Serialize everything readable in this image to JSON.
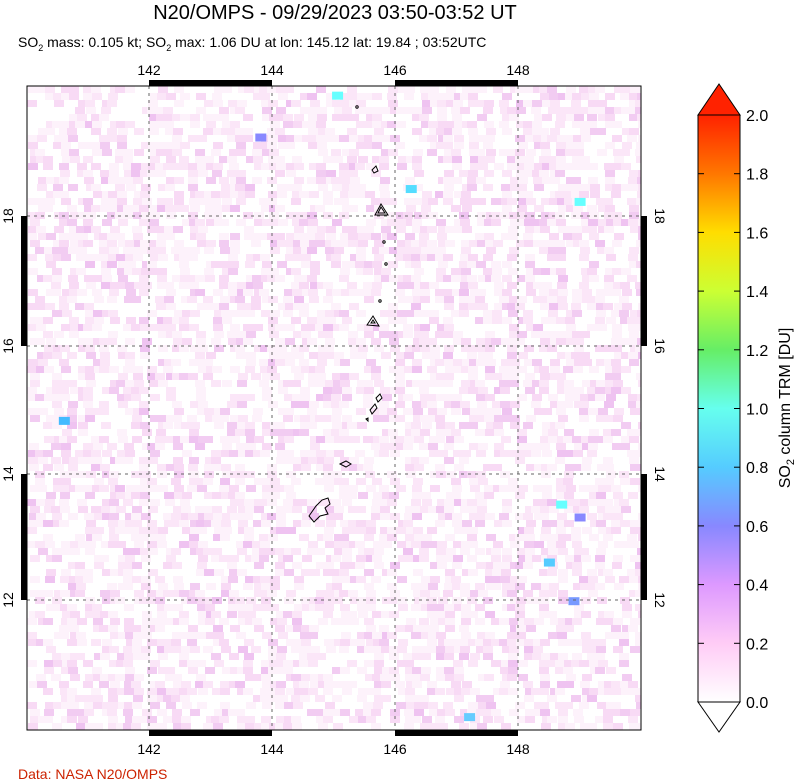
{
  "header": {
    "title": "N20/OMPS - 09/29/2023 03:50-03:52 UT",
    "subtitle_parts": {
      "a": "SO",
      "a_sub": "2",
      "b": " mass: 0.105 kt; SO",
      "b_sub": "2",
      "c": " max: 1.06 DU at lon: 145.12 lat: 19.84 ; 03:52UTC"
    }
  },
  "footer": {
    "source": "Data: NASA N20/OMPS"
  },
  "map": {
    "lon_ticks": [
      "142",
      "144",
      "146",
      "148"
    ],
    "lat_ticks": [
      "18",
      "16",
      "14",
      "12"
    ],
    "lon_range": [
      140.0,
      150.0
    ],
    "lat_range": [
      10.0,
      20.0
    ],
    "grid": "dashed",
    "background_pixel_colors": [
      "#ffffff",
      "#fdf2fb",
      "#fbe6f8",
      "#f8daf5",
      "#f2ccf2",
      "#efc3f1"
    ],
    "highlight_pixels": [
      {
        "lon": 145.05,
        "lat": 19.85,
        "color": "#66ffff"
      },
      {
        "lon": 146.25,
        "lat": 18.4,
        "color": "#55ddff"
      },
      {
        "lon": 149.0,
        "lat": 18.2,
        "color": "#66ffff"
      },
      {
        "lon": 143.8,
        "lat": 19.2,
        "color": "#8888ff"
      },
      {
        "lon": 148.7,
        "lat": 13.5,
        "color": "#66ffff"
      },
      {
        "lon": 148.5,
        "lat": 12.6,
        "color": "#55ccff"
      },
      {
        "lon": 147.2,
        "lat": 10.2,
        "color": "#66ccff"
      },
      {
        "lon": 140.6,
        "lat": 14.8,
        "color": "#44bbff"
      },
      {
        "lon": 148.9,
        "lat": 12.0,
        "color": "#7799ff"
      },
      {
        "lon": 149.0,
        "lat": 13.3,
        "color": "#8888ff"
      }
    ]
  },
  "colorbar": {
    "label_main": "SO",
    "label_sub": "2",
    "label_rest": " column TRM [DU]",
    "ticks": [
      "2.0",
      "1.8",
      "1.6",
      "1.4",
      "1.2",
      "1.0",
      "0.8",
      "0.6",
      "0.4",
      "0.2",
      "0.0"
    ],
    "range": [
      0.0,
      2.0
    ],
    "colors": [
      "#ffffff",
      "#ffccf6",
      "#dd99ff",
      "#8888ff",
      "#55ccff",
      "#66ffee",
      "#66ee66",
      "#ccff33",
      "#ffdd00",
      "#ff7700",
      "#ff2200"
    ]
  }
}
